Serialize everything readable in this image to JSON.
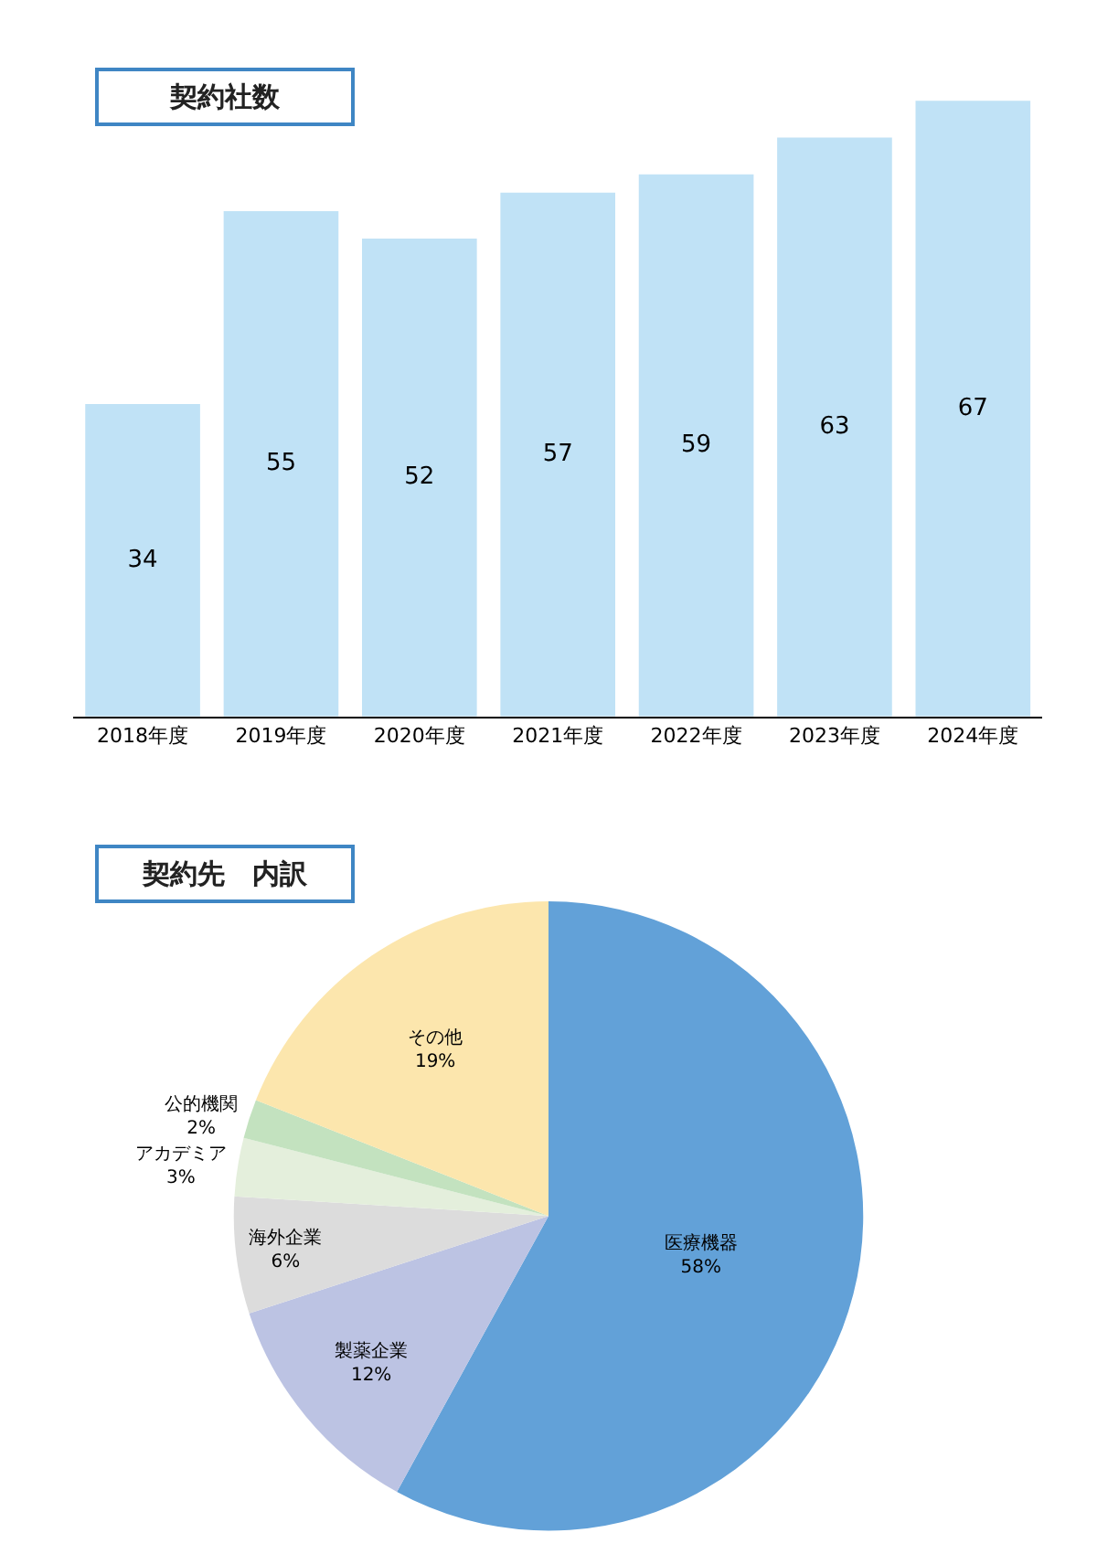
{
  "chart_data": [
    {
      "type": "bar",
      "title": "契約社数",
      "categories": [
        "2018年度",
        "2019年度",
        "2020年度",
        "2021年度",
        "2022年度",
        "2023年度",
        "2024年度"
      ],
      "values": [
        34,
        55,
        52,
        57,
        59,
        63,
        67
      ],
      "color": "#c0e2f6",
      "data_labels": true,
      "tick_labels": "x",
      "legend": false
    },
    {
      "type": "pie",
      "title": "契約先　内訳",
      "categories": [
        "医療機器",
        "製薬企業",
        "海外企業",
        "アカデミア",
        "公的機関",
        "その他"
      ],
      "values": [
        58,
        12,
        6,
        3,
        2,
        19
      ],
      "value_labels": [
        "58%",
        "12%",
        "6%",
        "3%",
        "2%",
        "19%"
      ],
      "colors": [
        "#62a1d8",
        "#bcc3e3",
        "#dcdcdc",
        "#e4efdc",
        "#c3e2bf",
        "#fce6ad"
      ],
      "legend": false
    }
  ]
}
